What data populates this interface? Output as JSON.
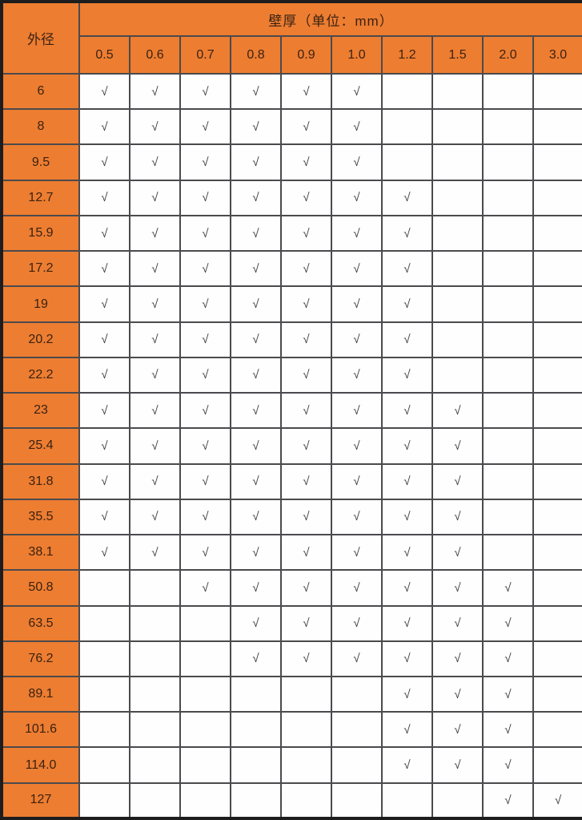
{
  "table": {
    "corner_header": "外径",
    "group_header": "壁厚（单位：mm）",
    "thickness_columns": [
      "0.5",
      "0.6",
      "0.7",
      "0.8",
      "0.9",
      "1.0",
      "1.2",
      "1.5",
      "2.0",
      "3.0"
    ],
    "check_symbol": "√",
    "rows": [
      {
        "diameter": "6",
        "checks": [
          1,
          1,
          1,
          1,
          1,
          1,
          0,
          0,
          0,
          0
        ]
      },
      {
        "diameter": "8",
        "checks": [
          1,
          1,
          1,
          1,
          1,
          1,
          0,
          0,
          0,
          0
        ]
      },
      {
        "diameter": "9.5",
        "checks": [
          1,
          1,
          1,
          1,
          1,
          1,
          0,
          0,
          0,
          0
        ]
      },
      {
        "diameter": "12.7",
        "checks": [
          1,
          1,
          1,
          1,
          1,
          1,
          1,
          0,
          0,
          0
        ]
      },
      {
        "diameter": "15.9",
        "checks": [
          1,
          1,
          1,
          1,
          1,
          1,
          1,
          0,
          0,
          0
        ]
      },
      {
        "diameter": "17.2",
        "checks": [
          1,
          1,
          1,
          1,
          1,
          1,
          1,
          0,
          0,
          0
        ]
      },
      {
        "diameter": "19",
        "checks": [
          1,
          1,
          1,
          1,
          1,
          1,
          1,
          0,
          0,
          0
        ]
      },
      {
        "diameter": "20.2",
        "checks": [
          1,
          1,
          1,
          1,
          1,
          1,
          1,
          0,
          0,
          0
        ]
      },
      {
        "diameter": "22.2",
        "checks": [
          1,
          1,
          1,
          1,
          1,
          1,
          1,
          0,
          0,
          0
        ]
      },
      {
        "diameter": "23",
        "checks": [
          1,
          1,
          1,
          1,
          1,
          1,
          1,
          1,
          0,
          0
        ]
      },
      {
        "diameter": "25.4",
        "checks": [
          1,
          1,
          1,
          1,
          1,
          1,
          1,
          1,
          0,
          0
        ]
      },
      {
        "diameter": "31.8",
        "checks": [
          1,
          1,
          1,
          1,
          1,
          1,
          1,
          1,
          0,
          0
        ]
      },
      {
        "diameter": "35.5",
        "checks": [
          1,
          1,
          1,
          1,
          1,
          1,
          1,
          1,
          0,
          0
        ]
      },
      {
        "diameter": "38.1",
        "checks": [
          1,
          1,
          1,
          1,
          1,
          1,
          1,
          1,
          0,
          0
        ]
      },
      {
        "diameter": "50.8",
        "checks": [
          0,
          0,
          1,
          1,
          1,
          1,
          1,
          1,
          1,
          0
        ]
      },
      {
        "diameter": "63.5",
        "checks": [
          0,
          0,
          0,
          1,
          1,
          1,
          1,
          1,
          1,
          0
        ]
      },
      {
        "diameter": "76.2",
        "checks": [
          0,
          0,
          0,
          1,
          1,
          1,
          1,
          1,
          1,
          0
        ]
      },
      {
        "diameter": "89.1",
        "checks": [
          0,
          0,
          0,
          0,
          0,
          0,
          1,
          1,
          1,
          0
        ]
      },
      {
        "diameter": "101.6",
        "checks": [
          0,
          0,
          0,
          0,
          0,
          0,
          1,
          1,
          1,
          0
        ]
      },
      {
        "diameter": "114.0",
        "checks": [
          0,
          0,
          0,
          0,
          0,
          0,
          1,
          1,
          1,
          0
        ]
      },
      {
        "diameter": "127",
        "checks": [
          0,
          0,
          0,
          0,
          0,
          0,
          0,
          0,
          1,
          1
        ]
      }
    ]
  },
  "colors": {
    "header_orange": "#ed7d31",
    "header_text": "#3a2213",
    "grid_line": "#4b4a4d",
    "outer_border": "#1e1d1d",
    "check_color": "#3c3c43",
    "cell_background": "#fefefe"
  }
}
